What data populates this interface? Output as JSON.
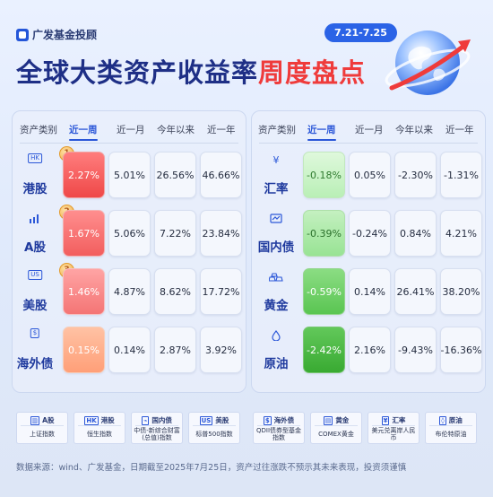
{
  "brand": {
    "logo_text": "广发基金投顾"
  },
  "date_range": "7.21-7.25",
  "title": {
    "main": "全球大类资产收益率",
    "highlight": "周度盘点"
  },
  "columns": [
    "资产类别",
    "近一周",
    "近一月",
    "今年以来",
    "近一年"
  ],
  "left_panel": {
    "rows": [
      {
        "name": "港股",
        "icon": "HK",
        "rank": "1",
        "week": "2.27%",
        "month": "5.01%",
        "ytd": "26.56%",
        "year": "46.66%"
      },
      {
        "name": "A股",
        "icon": "chart-icon",
        "rank": "2",
        "week": "1.67%",
        "month": "5.06%",
        "ytd": "7.22%",
        "year": "23.84%"
      },
      {
        "name": "美股",
        "icon": "US",
        "rank": "3",
        "week": "1.46%",
        "month": "4.87%",
        "ytd": "8.62%",
        "year": "17.72%"
      },
      {
        "name": "海外债",
        "icon": "$",
        "rank": "",
        "week": "0.15%",
        "month": "0.14%",
        "ytd": "2.87%",
        "year": "3.92%"
      }
    ]
  },
  "right_panel": {
    "rows": [
      {
        "name": "汇率",
        "icon": "¥",
        "week": "-0.18%",
        "month": "0.05%",
        "ytd": "-2.30%",
        "year": "-1.31%"
      },
      {
        "name": "国内债",
        "icon": "bond-icon",
        "week": "-0.39%",
        "month": "-0.24%",
        "ytd": "0.84%",
        "year": "4.21%"
      },
      {
        "name": "黄金",
        "icon": "gold-icon",
        "week": "-0.59%",
        "month": "0.14%",
        "ytd": "26.41%",
        "year": "38.20%"
      },
      {
        "name": "原油",
        "icon": "oil-drop-icon",
        "week": "-2.42%",
        "month": "2.16%",
        "ytd": "-9.43%",
        "year": "-16.36%"
      }
    ]
  },
  "legend": [
    {
      "tag": "A股",
      "text": "上证指数"
    },
    {
      "tag": "港股",
      "text": "恒生指数"
    },
    {
      "tag": "国内债",
      "text": "中债-新综合财富(总值)指数"
    },
    {
      "tag": "美股",
      "text": "标普500指数"
    },
    {
      "tag": "海外债",
      "text": "QDII债券型基金指数"
    },
    {
      "tag": "黄金",
      "text": "COMEX黄金"
    },
    {
      "tag": "汇率",
      "text": "美元兑离岸人民币"
    },
    {
      "tag": "原油",
      "text": "布伦特原油"
    }
  ],
  "footer": "数据来源：wind、广发基金，日期截至2025年7月25日，资产过往涨跌不预示其未来表现，投资须谨慎",
  "colors": {
    "brand_blue": "#1e2f86",
    "accent_red": "#ef3b3b",
    "pill_blue": "#2b63e6"
  }
}
